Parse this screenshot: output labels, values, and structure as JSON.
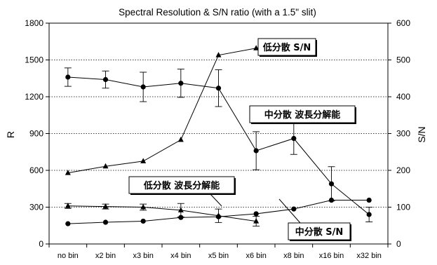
{
  "chart_data": {
    "type": "line",
    "title": "Spectral Resolution & S/N ratio (with a 1.5\" slit)",
    "ylabel": "R",
    "y2label": "S/N",
    "categories": [
      "no bin",
      "x2 bin",
      "x3 bin",
      "x4 bin",
      "x5 bin",
      "x6 bin",
      "x8 bin",
      "x16 bin",
      "x32 bin"
    ],
    "ylim": [
      0,
      1800
    ],
    "y2lim": [
      0,
      600
    ],
    "yticks": [
      "0",
      "300",
      "600",
      "900",
      "1200",
      "1500",
      "1800"
    ],
    "y2ticks": [
      "0",
      "100",
      "200",
      "300",
      "400",
      "500",
      "600"
    ],
    "grid": "horizontal-dotted",
    "series": [
      {
        "name": "低分散 S/N",
        "axis": "right",
        "marker": "triangle",
        "values": [
          193,
          211,
          225,
          283,
          513,
          532,
          null,
          null,
          null
        ]
      },
      {
        "name": "中分散 波長分解能",
        "axis": "left",
        "marker": "circle",
        "values": [
          1360,
          1340,
          1280,
          1310,
          1270,
          760,
          860,
          490,
          240
        ],
        "err": [
          75,
          70,
          120,
          115,
          150,
          155,
          130,
          140,
          60
        ]
      },
      {
        "name": "低分散 波長分解能",
        "axis": "left",
        "marker": "triangle",
        "values": [
          310,
          305,
          300,
          275,
          230,
          185,
          null,
          null,
          null
        ],
        "err": [
          20,
          20,
          25,
          55,
          55,
          40,
          null,
          null,
          null
        ]
      },
      {
        "name": "中分散 S/N",
        "axis": "right",
        "marker": "circle",
        "values": [
          55,
          59,
          62,
          72,
          74,
          82,
          95,
          119,
          119
        ]
      }
    ],
    "annotations": [
      {
        "text": "低分散 S/N",
        "series": 0
      },
      {
        "text": "中分散 波長分解能",
        "series": 1
      },
      {
        "text": "低分散 波長分解能",
        "series": 2
      },
      {
        "text": "中分散 S/N",
        "series": 3
      }
    ]
  }
}
